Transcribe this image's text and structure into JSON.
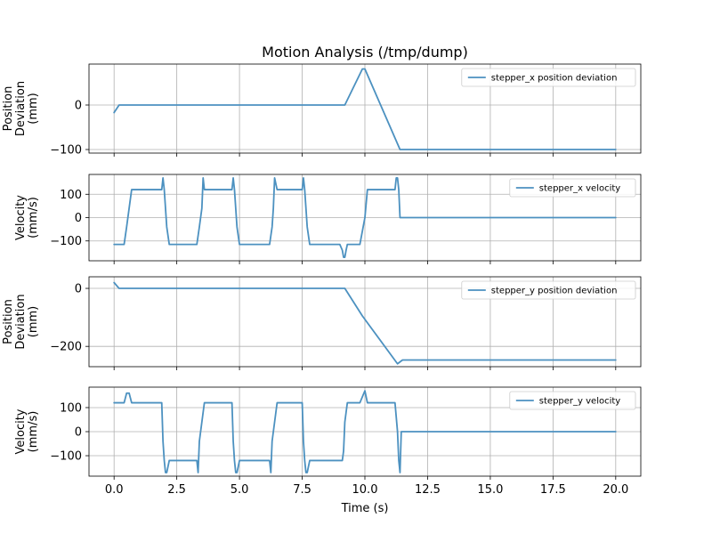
{
  "chart_data": {
    "type": "line",
    "title": "Motion Analysis (/tmp/dump)",
    "xlabel": "Time (s)",
    "xlim": [
      -1.0,
      21.0
    ],
    "xticks": [
      0.0,
      2.5,
      5.0,
      7.5,
      10.0,
      12.5,
      15.0,
      17.5,
      20.0
    ],
    "xtick_labels": [
      "0.0",
      "2.5",
      "5.0",
      "7.5",
      "10.0",
      "12.5",
      "15.0",
      "17.5",
      "20.0"
    ],
    "grid": true,
    "line_color": "#4c91c0",
    "subplots": [
      {
        "ylabel_lines": [
          "Position",
          "Deviation",
          "(mm)"
        ],
        "ylim": [
          -108,
          92
        ],
        "yticks": [
          0,
          -100
        ],
        "ytick_labels": [
          "0",
          "−100"
        ],
        "legend": "stepper_x position deviation",
        "legend_loc": "upper right",
        "series": {
          "name": "stepper_x position deviation",
          "x": [
            0,
            0.2,
            9.2,
            9.9,
            10.0,
            11.4,
            20.0
          ],
          "y": [
            -17,
            0,
            0,
            81,
            81,
            -100,
            -100
          ]
        }
      },
      {
        "ylabel_lines": [
          "Velocity",
          "(mm/s)"
        ],
        "ylim": [
          -185,
          185
        ],
        "yticks": [
          100,
          0,
          -100
        ],
        "ytick_labels": [
          "100",
          "0",
          "−100"
        ],
        "legend": "stepper_x velocity",
        "legend_loc": "upper right",
        "series": {
          "name": "stepper_x velocity",
          "x": [
            0,
            0.4,
            0.5,
            0.6,
            0.7,
            1.9,
            1.95,
            2.0,
            2.1,
            2.2,
            3.3,
            3.4,
            3.5,
            3.55,
            3.6,
            3.7,
            4.7,
            4.75,
            4.8,
            4.9,
            5.0,
            6.2,
            6.3,
            6.35,
            6.4,
            6.5,
            7.5,
            7.55,
            7.6,
            7.7,
            7.8,
            9.0,
            9.1,
            9.15,
            9.2,
            9.25,
            9.3,
            9.4,
            9.5,
            9.8,
            10.0,
            10.1,
            11.2,
            11.25,
            11.3,
            11.35,
            11.4,
            11.5,
            20.0
          ],
          "y": [
            -115,
            -115,
            -40,
            40,
            120,
            120,
            170,
            120,
            -40,
            -115,
            -115,
            -40,
            40,
            170,
            120,
            120,
            120,
            170,
            120,
            -40,
            -115,
            -115,
            -40,
            40,
            170,
            120,
            120,
            170,
            120,
            -40,
            -115,
            -115,
            -140,
            -170,
            -170,
            -140,
            -115,
            -115,
            -115,
            -115,
            0,
            120,
            120,
            170,
            170,
            120,
            0,
            0,
            0
          ]
        }
      },
      {
        "ylabel_lines": [
          "Position",
          "Deviation",
          "(mm)"
        ],
        "ylim": [
          -270,
          40
        ],
        "yticks": [
          0,
          -200
        ],
        "ytick_labels": [
          "0",
          "−200"
        ],
        "legend": "stepper_y position deviation",
        "legend_loc": "upper right",
        "series": {
          "name": "stepper_y position deviation",
          "x": [
            0,
            0.2,
            9.2,
            9.9,
            11.3,
            11.5,
            20.0
          ],
          "y": [
            20,
            0,
            0,
            -95,
            -260,
            -247,
            -247
          ]
        }
      },
      {
        "ylabel_lines": [
          "Velocity",
          "(mm/s)"
        ],
        "ylim": [
          -185,
          185
        ],
        "yticks": [
          100,
          0,
          -100
        ],
        "ytick_labels": [
          "100",
          "0",
          "−100"
        ],
        "legend": "stepper_y velocity",
        "legend_loc": "upper right",
        "series": {
          "name": "stepper_y velocity",
          "x": [
            0,
            0.4,
            0.5,
            0.6,
            0.7,
            1.9,
            1.95,
            2.0,
            2.05,
            2.1,
            2.2,
            3.3,
            3.35,
            3.4,
            3.5,
            3.6,
            3.7,
            4.7,
            4.75,
            4.8,
            4.85,
            4.9,
            5.0,
            6.2,
            6.25,
            6.3,
            6.4,
            6.5,
            7.5,
            7.55,
            7.6,
            7.65,
            7.7,
            7.8,
            9.0,
            9.1,
            9.15,
            9.2,
            9.3,
            9.4,
            9.5,
            9.8,
            10.0,
            10.1,
            11.2,
            11.3,
            11.35,
            11.4,
            11.45,
            11.5,
            20.0
          ],
          "y": [
            120,
            120,
            160,
            160,
            120,
            120,
            -40,
            -120,
            -170,
            -170,
            -120,
            -120,
            -170,
            -40,
            40,
            120,
            120,
            120,
            -40,
            -120,
            -170,
            -170,
            -120,
            -120,
            -170,
            -40,
            40,
            120,
            120,
            -40,
            -120,
            -170,
            -170,
            -120,
            -120,
            -120,
            -80,
            40,
            120,
            120,
            120,
            120,
            170,
            120,
            120,
            0,
            -120,
            -170,
            0,
            0,
            0
          ]
        }
      }
    ]
  }
}
